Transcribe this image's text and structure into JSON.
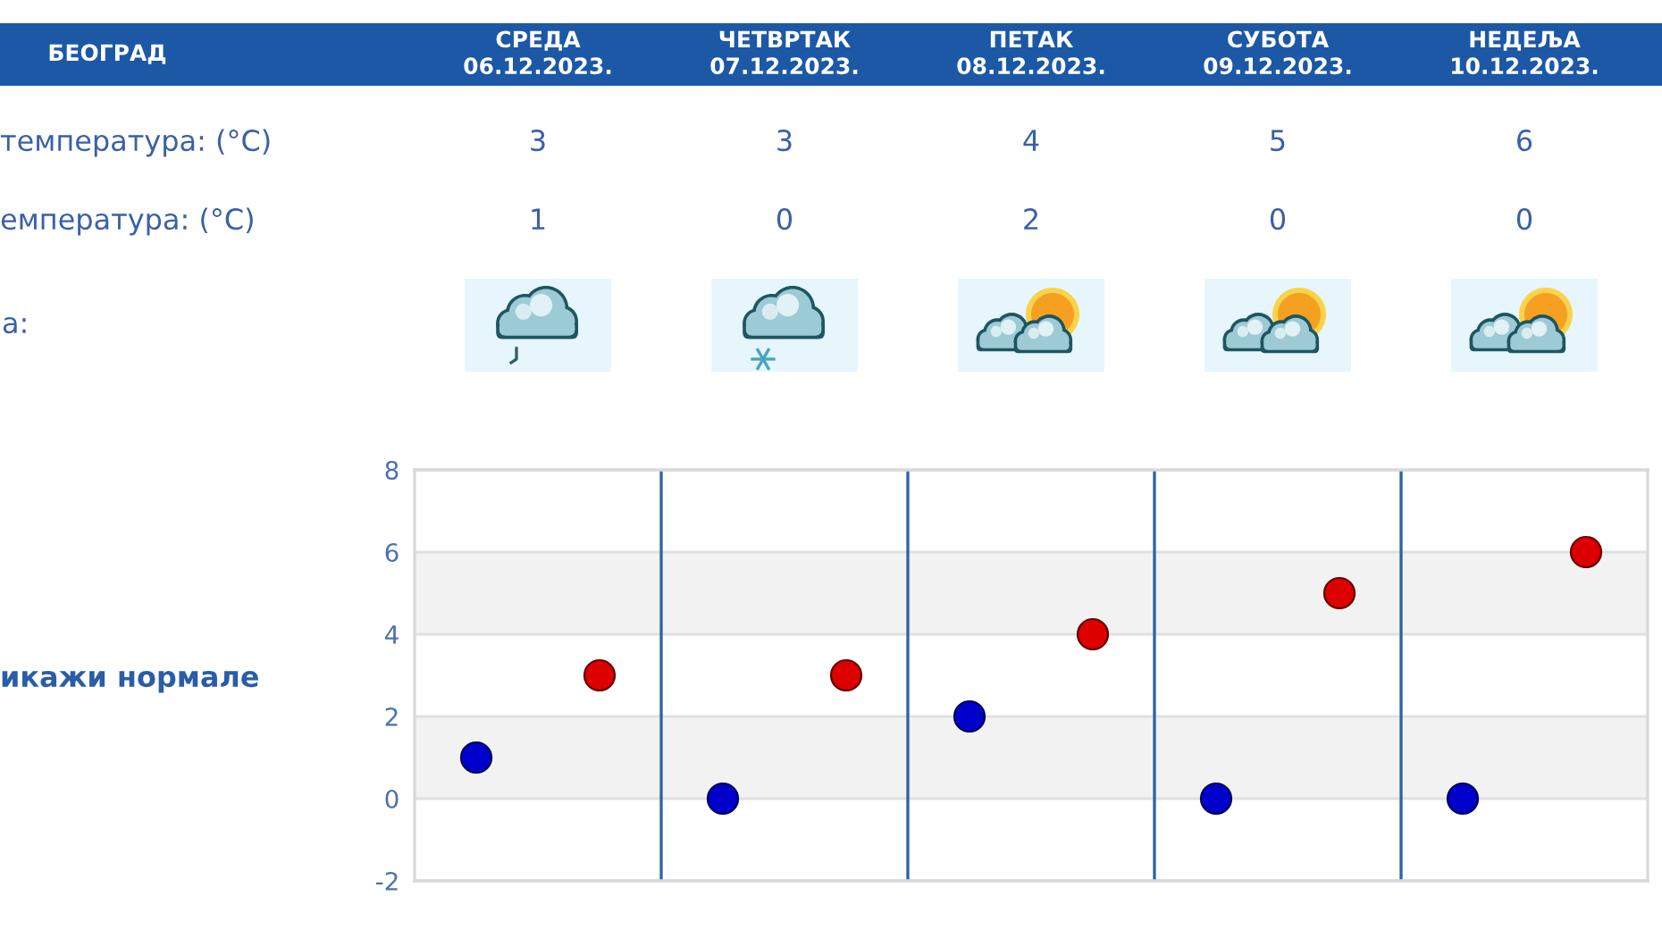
{
  "chart_data": [
    {
      "type": "other",
      "title": "БЕОГРАД",
      "categories": [
        "СРЕДА\n06.12.2023.",
        "ЧЕТВРТАК\n07.12.2023.",
        "ПЕТАК\n08.12.2023.",
        "СУБОТА\n09.12.2023.",
        "НЕДЕЉА\n10.12.2023."
      ],
      "series": [
        {
          "color": "#3a60a8",
          "values": [
            3,
            3,
            4,
            5,
            6
          ]
        },
        {
          "color": "#3a60a8",
          "values": [
            1,
            0,
            2,
            0,
            0
          ]
        }
      ],
      "data_labels": true,
      "annotations": [
        "температура: (°C)",
        "емпература: (°C)",
        "а:"
      ]
    },
    {
      "type": "scatter",
      "categories": [
        null,
        null,
        null,
        null,
        null
      ],
      "series": [
        {
          "color": "#0000cc",
          "values": [
            1,
            0,
            2,
            0,
            0
          ]
        },
        {
          "color": "#dd0000",
          "values": [
            3,
            3,
            4,
            5,
            6
          ]
        }
      ],
      "ylim": [
        -2,
        8
      ],
      "yticks": [
        -2,
        0,
        2,
        4,
        6,
        8
      ],
      "grid": true,
      "marker": "circle",
      "bands": [
        {
          "axis": "y",
          "from": 0,
          "to": 2,
          "color": "#f2f2f2"
        },
        {
          "axis": "y",
          "from": 4,
          "to": 6,
          "color": "#f2f2f2"
        }
      ],
      "annotations": [
        "икажи нормале"
      ]
    }
  ]
}
